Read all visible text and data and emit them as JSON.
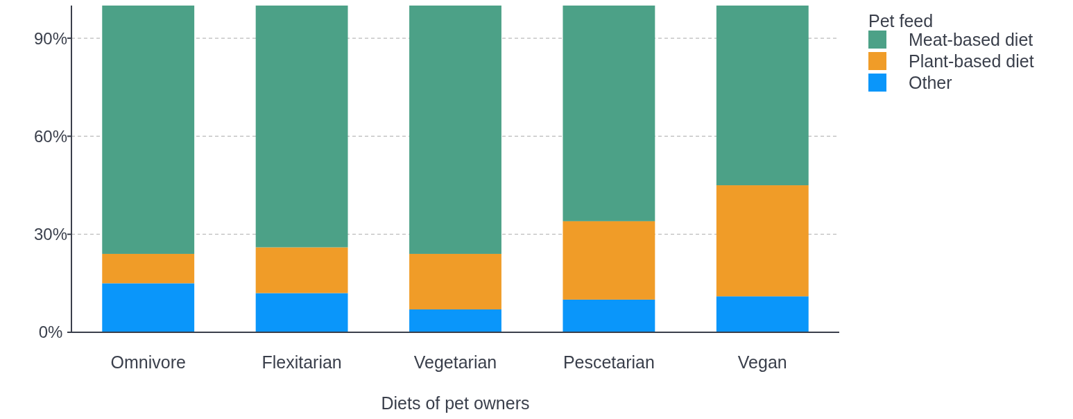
{
  "chart_data": {
    "type": "bar",
    "stacked": true,
    "xlabel": "Diets of pet owners",
    "legend_title": "Pet feed",
    "categories": [
      "Omnivore",
      "Flexitarian",
      "Vegetarian",
      "Pescetarian",
      "Vegan"
    ],
    "series": [
      {
        "name": "Other",
        "color": "#0a96fa",
        "values": [
          15,
          12,
          7,
          10,
          11
        ]
      },
      {
        "name": "Plant-based diet",
        "color": "#f09c28",
        "values": [
          9,
          14,
          17,
          24,
          34
        ]
      },
      {
        "name": "Meat-based diet",
        "color": "#4ca187",
        "values": [
          76,
          74,
          76,
          66,
          55
        ]
      }
    ],
    "ylim": [
      0,
      100
    ],
    "yticks": [
      {
        "value": 0,
        "label": "0%"
      },
      {
        "value": 30,
        "label": "30%"
      },
      {
        "value": 60,
        "label": "60%"
      },
      {
        "value": 90,
        "label": "90%"
      }
    ],
    "grid": "y",
    "legend": "top right"
  }
}
